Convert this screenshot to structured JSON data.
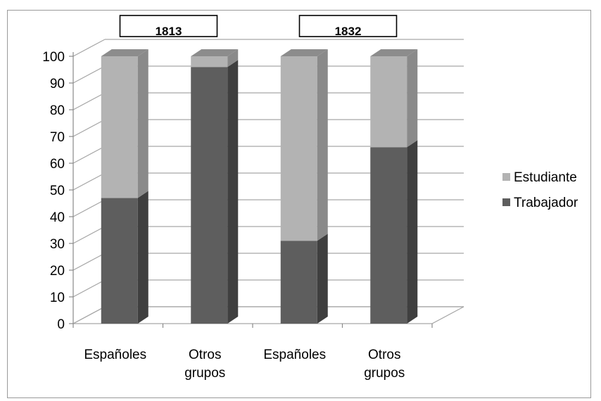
{
  "chart_data": {
    "type": "bar",
    "stacked": true,
    "three_d": true,
    "groups": [
      "1813",
      "1832"
    ],
    "categories": [
      [
        "Españoles"
      ],
      [
        "Otros",
        "grupos"
      ],
      [
        "Españoles"
      ],
      [
        "Otros",
        "grupos"
      ]
    ],
    "category_group": [
      0,
      0,
      1,
      1
    ],
    "series": [
      {
        "name": "Trabajador",
        "values": [
          47,
          96,
          31,
          66
        ]
      },
      {
        "name": "Estudiante",
        "values": [
          53,
          4,
          69,
          34
        ]
      }
    ],
    "ylim": [
      0,
      100
    ],
    "yticks": [
      0,
      10,
      20,
      30,
      40,
      50,
      60,
      70,
      80,
      90,
      100
    ],
    "grid": true,
    "legend_position": "right",
    "colors": {
      "Trabajador": "#5e5e5e",
      "Trabajador_side": "#3f3f3f",
      "Trabajador_top": "#7a7a7a",
      "Estudiante": "#b3b3b3",
      "Estudiante_side": "#8a8a8a",
      "Estudiante_top": "#8c8c8c",
      "grid": "#a6a6a6"
    }
  }
}
